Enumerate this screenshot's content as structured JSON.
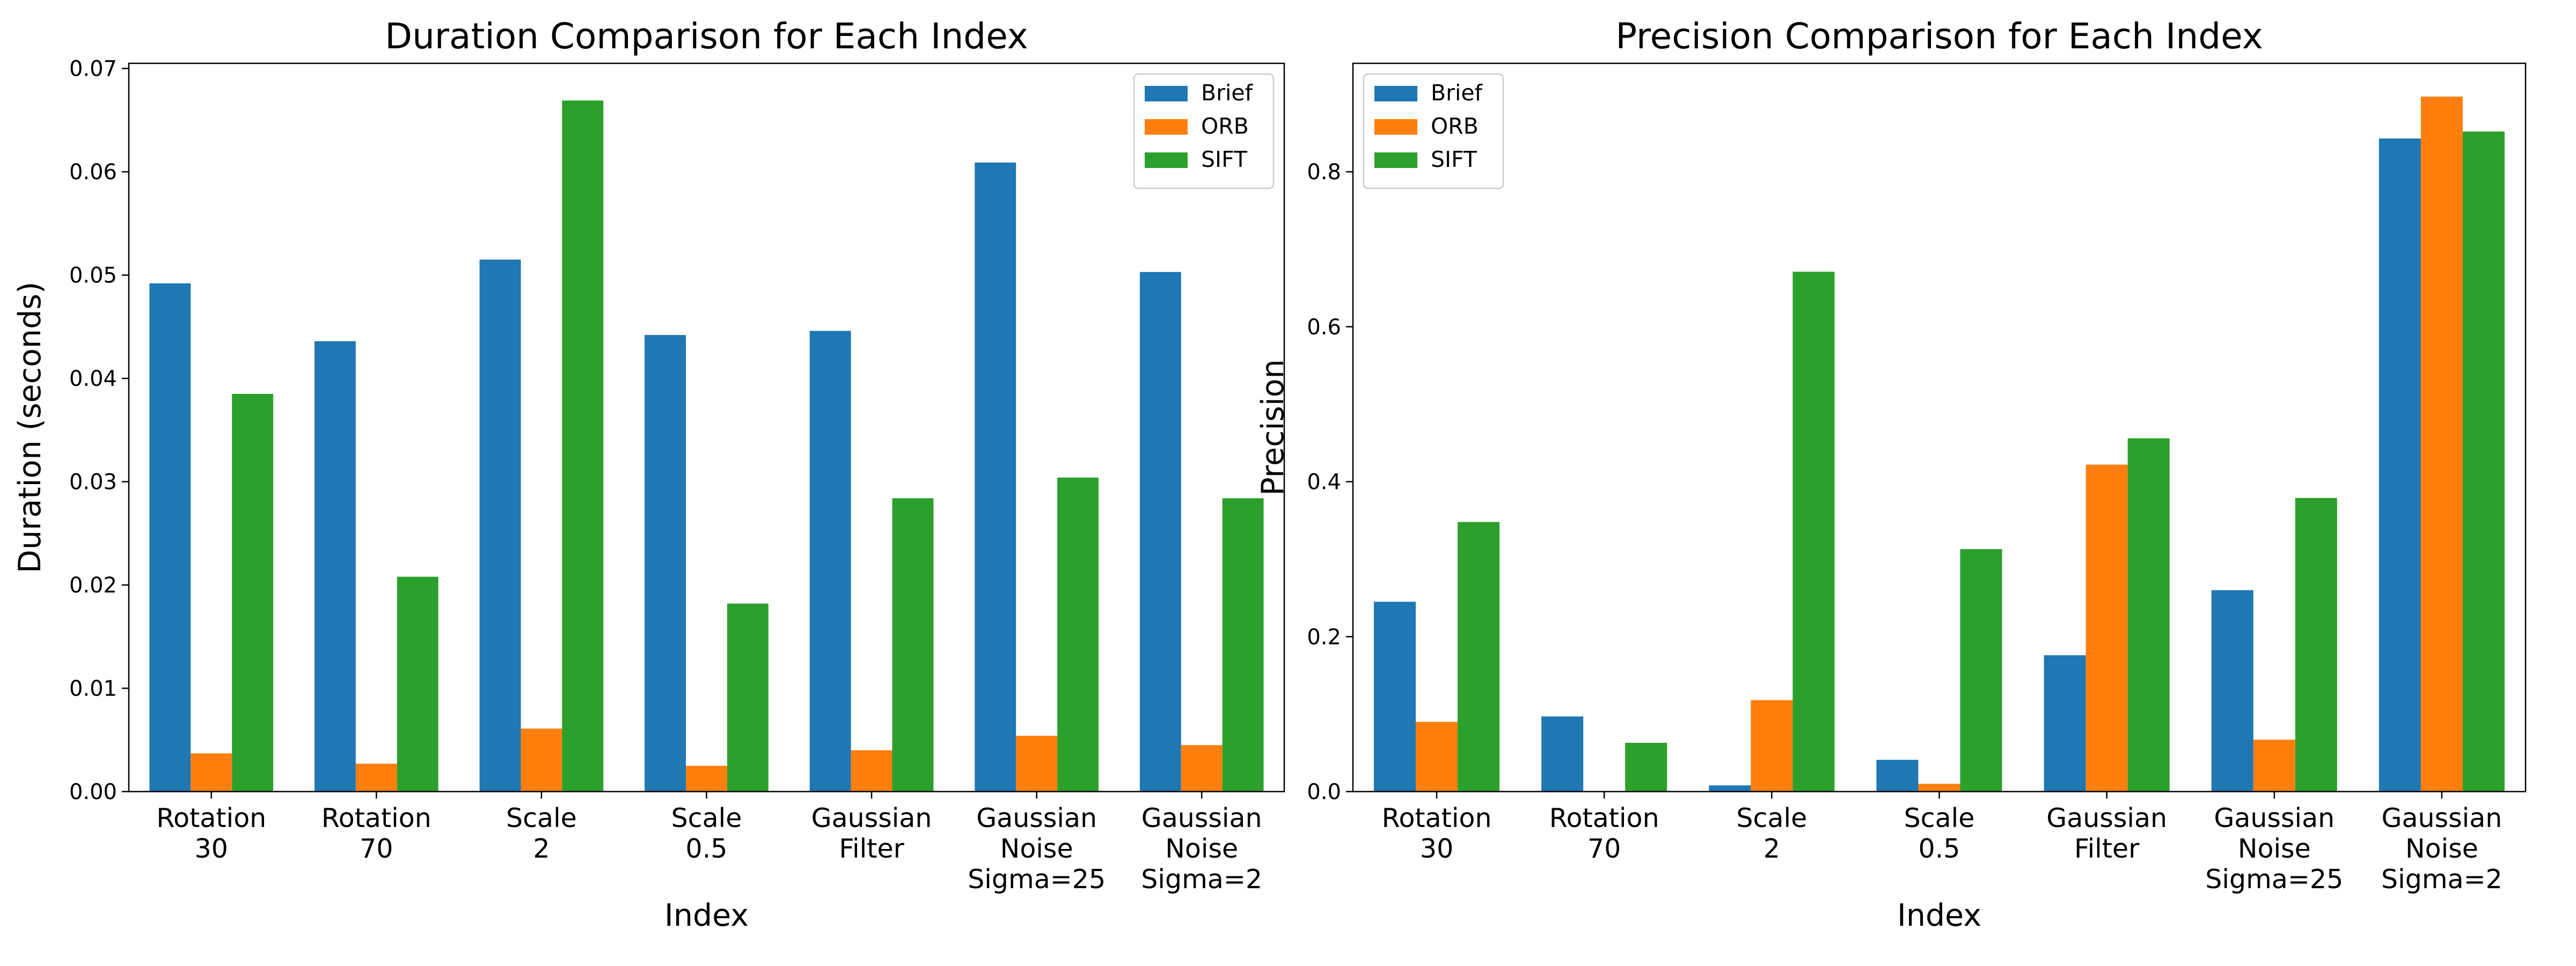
{
  "chart_data": [
    {
      "type": "bar",
      "title": "Duration Comparison for Each Index",
      "xlabel": "Index",
      "ylabel": "Duration (seconds)",
      "ylim": [
        0,
        0.0705
      ],
      "yticks": [
        "0.00",
        "0.01",
        "0.02",
        "0.03",
        "0.04",
        "0.05",
        "0.06",
        "0.07"
      ],
      "ytick_values": [
        0,
        0.01,
        0.02,
        0.03,
        0.04,
        0.05,
        0.06,
        0.07
      ],
      "legend_position": "top-right",
      "grid": false,
      "categories": [
        [
          "Rotation",
          "30"
        ],
        [
          "Rotation",
          "70"
        ],
        [
          "Scale",
          "2"
        ],
        [
          "Scale",
          "0.5"
        ],
        [
          "Gaussian",
          "Filter"
        ],
        [
          "Gaussian",
          "Noise",
          "Sigma=25"
        ],
        [
          "Gaussian",
          "Noise",
          "Sigma=2"
        ]
      ],
      "series": [
        {
          "name": "Brief",
          "color": "#1f77b4",
          "values": [
            0.0492,
            0.0436,
            0.0515,
            0.0442,
            0.0446,
            0.0609,
            0.0503
          ]
        },
        {
          "name": "ORB",
          "color": "#ff7f0e",
          "values": [
            0.0037,
            0.0027,
            0.0061,
            0.0025,
            0.004,
            0.0054,
            0.0045
          ]
        },
        {
          "name": "SIFT",
          "color": "#2ca02c",
          "values": [
            0.0385,
            0.0208,
            0.0669,
            0.0182,
            0.0284,
            0.0304,
            0.0284
          ]
        }
      ]
    },
    {
      "type": "bar",
      "title": "Precision Comparison for Each Index",
      "xlabel": "Index",
      "ylabel": "Precision",
      "ylim": [
        0,
        0.94
      ],
      "yticks": [
        "0.0",
        "0.2",
        "0.4",
        "0.6",
        "0.8"
      ],
      "ytick_values": [
        0,
        0.2,
        0.4,
        0.6,
        0.8
      ],
      "legend_position": "top-left",
      "grid": false,
      "categories": [
        [
          "Rotation",
          "30"
        ],
        [
          "Rotation",
          "70"
        ],
        [
          "Scale",
          "2"
        ],
        [
          "Scale",
          "0.5"
        ],
        [
          "Gaussian",
          "Filter"
        ],
        [
          "Gaussian",
          "Noise",
          "Sigma=25"
        ],
        [
          "Gaussian",
          "Noise",
          "Sigma=2"
        ]
      ],
      "series": [
        {
          "name": "Brief",
          "color": "#1f77b4",
          "values": [
            0.245,
            0.097,
            0.008,
            0.041,
            0.176,
            0.26,
            0.843
          ]
        },
        {
          "name": "ORB",
          "color": "#ff7f0e",
          "values": [
            0.09,
            0.0,
            0.118,
            0.01,
            0.422,
            0.067,
            0.897
          ]
        },
        {
          "name": "SIFT",
          "color": "#2ca02c",
          "values": [
            0.348,
            0.063,
            0.671,
            0.313,
            0.456,
            0.379,
            0.852
          ]
        }
      ]
    }
  ]
}
